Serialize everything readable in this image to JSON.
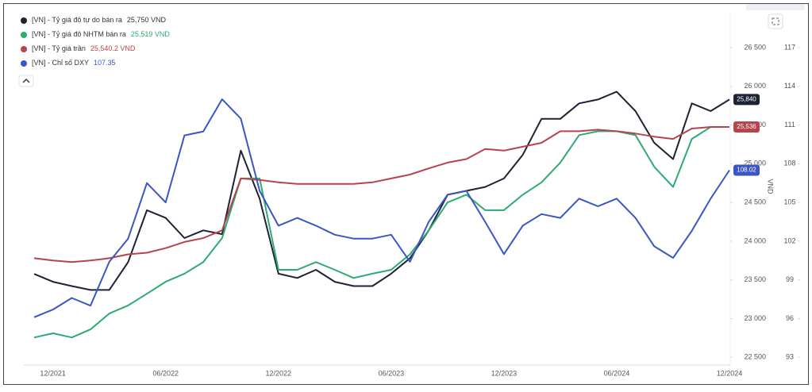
{
  "chart_data": {
    "type": "line",
    "categories": [
      null,
      "12/2021",
      null,
      null,
      null,
      null,
      null,
      "06/2022",
      null,
      null,
      null,
      null,
      null,
      "12/2022",
      null,
      null,
      null,
      null,
      null,
      "06/2023",
      null,
      null,
      null,
      null,
      null,
      "12/2023",
      null,
      null,
      null,
      null,
      null,
      "06/2024",
      null,
      null,
      null,
      null,
      null,
      "12/2024"
    ],
    "ylim": [
      22400,
      26900
    ],
    "yticks": [
      {
        "value": 22500,
        "label": "22 500"
      },
      {
        "value": 23000,
        "label": "23 000"
      },
      {
        "value": 23500,
        "label": "23 500"
      },
      {
        "value": 24000,
        "label": "24 000"
      },
      {
        "value": 24500,
        "label": "24 500"
      },
      {
        "value": 25000,
        "label": "25 000"
      },
      {
        "value": 25500,
        "label": "25 500"
      },
      {
        "value": 26000,
        "label": "26 000"
      },
      {
        "value": 26500,
        "label": "26 500"
      }
    ],
    "y2lim": [
      92.4,
      119.4
    ],
    "y2ticks": [
      93,
      96,
      99,
      102,
      105,
      108,
      111,
      114,
      117
    ],
    "y2label": "VND",
    "series": [
      {
        "name": "[VN] - Tỷ giá đô tự do bán ra",
        "legend_value": "25,750 VND",
        "badge": "25,840",
        "color": "#1e2235",
        "values": [
          23577,
          23475,
          23420,
          23370,
          23370,
          23730,
          24400,
          24300,
          24040,
          24140,
          24090,
          25170,
          24550,
          23580,
          23525,
          23630,
          23475,
          23420,
          23420,
          23580,
          23780,
          24140,
          24600,
          24650,
          24700,
          24810,
          25115,
          25580,
          25580,
          25780,
          25830,
          25930,
          25680,
          25270,
          25060,
          25780,
          25680,
          25830
        ]
      },
      {
        "name": "[VN] - Tỷ giá đô NHTM bán ra",
        "legend_value": "25,519 VND",
        "color": "#2eaa72",
        "values": [
          22756,
          22810,
          22756,
          22860,
          23065,
          23170,
          23320,
          23475,
          23580,
          23730,
          24040,
          24810,
          24810,
          23630,
          23630,
          23730,
          23630,
          23525,
          23580,
          23630,
          23830,
          24140,
          24500,
          24600,
          24400,
          24400,
          24600,
          24760,
          25015,
          25370,
          25420,
          25420,
          25370,
          24960,
          24700,
          25320,
          25475,
          25475
        ]
      },
      {
        "name": "[VN] - Tỷ giá trần",
        "legend_value": "25,540.2 VND",
        "badge": "25,536",
        "color": "#b5444c",
        "values": [
          23780,
          23750,
          23730,
          23750,
          23780,
          23830,
          23850,
          23910,
          23990,
          24040,
          24140,
          24810,
          24790,
          24760,
          24740,
          24740,
          24740,
          24740,
          24760,
          24810,
          24860,
          24940,
          25015,
          25060,
          25190,
          25170,
          25220,
          25270,
          25420,
          25420,
          25440,
          25420,
          25390,
          25350,
          25320,
          25455,
          25475,
          25475
        ]
      },
      {
        "name": "[VN] - Chỉ số DXY",
        "legend_value": "107.35",
        "badge": "108.02",
        "color": "#3a56c5",
        "axis": "y2",
        "values": [
          96.1,
          96.7,
          97.6,
          97.0,
          100.4,
          102.2,
          106.5,
          105.0,
          110.2,
          110.5,
          113.0,
          111.5,
          105.9,
          103.2,
          103.8,
          103.2,
          102.5,
          102.2,
          102.2,
          102.5,
          100.4,
          103.5,
          105.6,
          105.9,
          103.5,
          101.0,
          103.2,
          104.1,
          103.8,
          105.3,
          104.7,
          105.3,
          103.8,
          101.6,
          100.7,
          102.8,
          105.3,
          107.5
        ]
      }
    ]
  }
}
